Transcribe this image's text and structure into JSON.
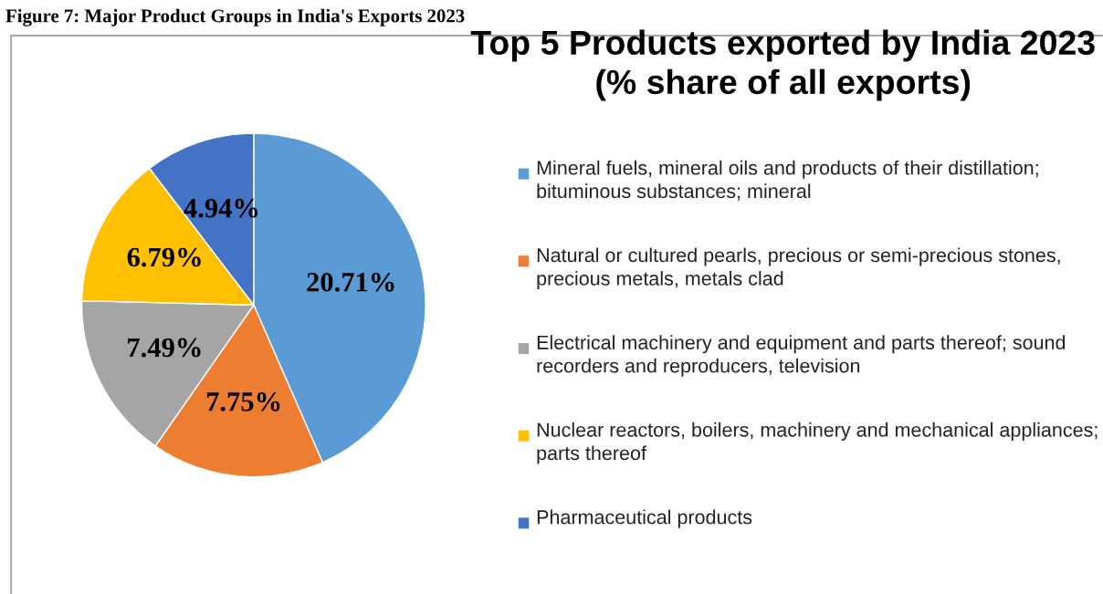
{
  "chart_data": {
    "type": "pie",
    "title": "Top 5 Products exported by India 2023\n(% share of all exports)",
    "annotations": [
      "Figure 7: Major Product Groups in India's Exports 2023"
    ],
    "categories": [
      "Mineral fuels, mineral oils and products of their distillation; bituminous substances; mineral",
      "Natural or cultured pearls, precious or semi-precious stones, precious metals, metals clad",
      "Electrical machinery and equipment and parts thereof; sound recorders and reproducers, television",
      "Nuclear reactors, boilers, machinery and mechanical appliances; parts thereof",
      "Pharmaceutical products"
    ],
    "values": [
      20.71,
      7.75,
      7.49,
      6.79,
      4.94
    ],
    "value_labels": [
      "20.71%",
      "7.75%",
      "7.49%",
      "6.79%",
      "4.94%"
    ],
    "colors": [
      "#5b9bd5",
      "#ed7d31",
      "#a5a5a5",
      "#ffc000",
      "#4472c4"
    ],
    "legend": "right"
  }
}
